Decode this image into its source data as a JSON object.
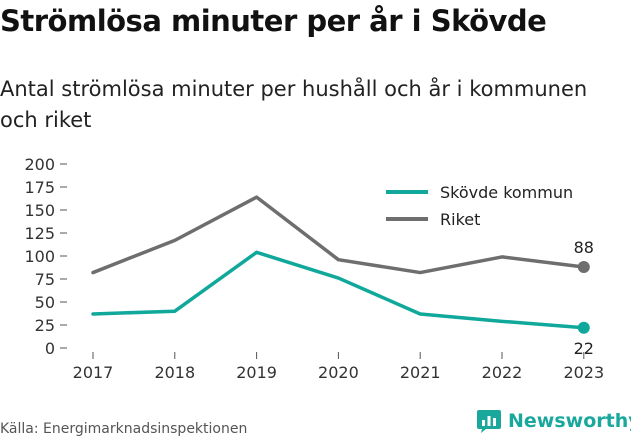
{
  "title": "Strömlösa minuter per år i Skövde",
  "subtitle": "Antal strömlösa minuter per hushåll och år i kommunen och riket",
  "source": "Källa: Energimarknadsinspektionen",
  "brand": {
    "name": "Newsworthy",
    "icon": "newsworthy-chart-icon",
    "color": "#1aa89d"
  },
  "chart_data": {
    "type": "line",
    "x": [
      "2017",
      "2018",
      "2019",
      "2020",
      "2021",
      "2022",
      "2023"
    ],
    "yticks": [
      "0",
      "25",
      "50",
      "75",
      "100",
      "125",
      "150",
      "175",
      "200"
    ],
    "ylim": [
      0,
      200
    ],
    "grid": false,
    "legend_position": "top-right",
    "series": [
      {
        "name": "Skövde kommun",
        "color": "#0fa89a",
        "values": [
          37,
          40,
          104,
          76,
          37,
          29,
          22
        ],
        "end_label": "22"
      },
      {
        "name": "Riket",
        "color": "#6e6e6e",
        "values": [
          82,
          117,
          164,
          96,
          82,
          99,
          88
        ],
        "end_label": "88"
      }
    ]
  }
}
